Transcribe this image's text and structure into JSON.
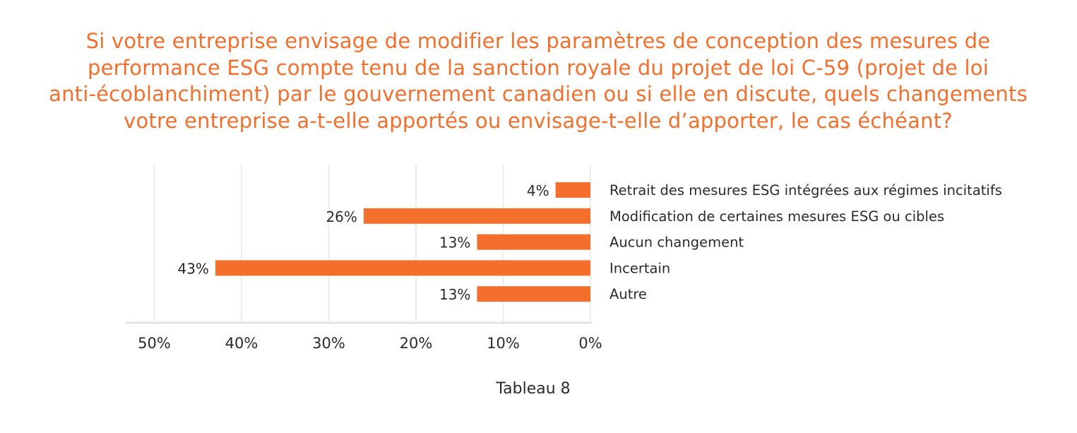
{
  "title_lines": [
    "Si votre entreprise envisage de modifier les paramètres de conception des mesures de",
    "performance ESG compte tenu de la sanction royale du projet de loi C-59 (projet de loi",
    "anti-écoblanchiment) par le gouvernement canadien ou si elle en discute, quels changements",
    "votre entreprise a-t-elle apportés ou envisage-t-elle d’apporter, le cas échéant?"
  ],
  "caption": "Tableau 8",
  "colors": {
    "bar": "#f36f2b",
    "title": "#f36f2b",
    "text": "#2b2b2b",
    "grid": "#ececec"
  },
  "chart_data": {
    "type": "bar",
    "orientation": "horizontal",
    "axis_direction": "reversed",
    "categories": [
      "Retrait des mesures ESG intégrées aux régimes incitatifs",
      "Modification de certaines mesures ESG ou cibles",
      "Aucun changement",
      "Incertain",
      "Autre"
    ],
    "values": [
      4,
      26,
      13,
      43,
      13
    ],
    "data_labels": [
      "4%",
      "26%",
      "13%",
      "43%",
      "13%"
    ],
    "xlim": [
      0,
      50
    ],
    "ticks": [
      50,
      40,
      30,
      20,
      10,
      0
    ],
    "tick_labels": [
      "50%",
      "40%",
      "30%",
      "20%",
      "10%",
      "0%"
    ],
    "grid": true,
    "legend": "none"
  }
}
